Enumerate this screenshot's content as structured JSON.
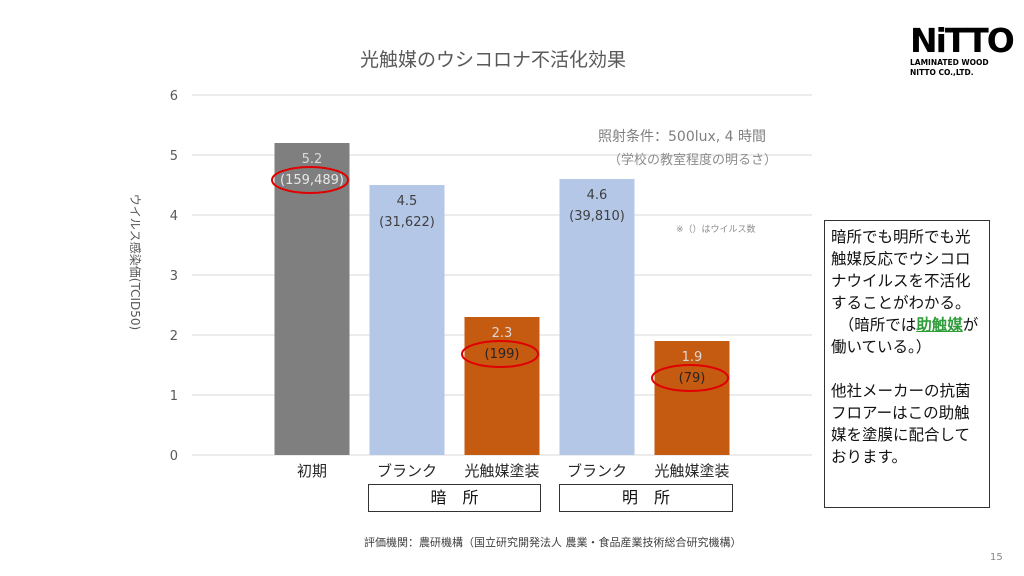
{
  "chart_data": {
    "type": "bar",
    "title": "光触媒のウシコロナ不活化効果",
    "ylabel": "ウイルス感染価(TCID50)",
    "xlabel": "",
    "ylim": [
      0,
      6
    ],
    "yticks": [
      0,
      1,
      2,
      3,
      4,
      5,
      6
    ],
    "grid": true,
    "categories": [
      "初期",
      "ブランク",
      "光触媒塗装",
      "ブランク",
      "光触媒塗装"
    ],
    "values": [
      5.2,
      4.5,
      2.3,
      4.6,
      1.9
    ],
    "value_labels": [
      "5.2",
      "4.5",
      "2.3",
      "4.6",
      "1.9"
    ],
    "sub_labels": [
      "(159,489)",
      "(31,622)",
      "(199)",
      "(39,810)",
      "(79)"
    ],
    "bar_colors": [
      "#7f7f7f",
      "#b4c7e7",
      "#c55a11",
      "#b4c7e7",
      "#c55a11"
    ],
    "circled": [
      0,
      2,
      4
    ],
    "groups": [
      {
        "label": "暗　所",
        "from": 1,
        "to": 2
      },
      {
        "label": "明　所",
        "from": 3,
        "to": 4
      }
    ],
    "annotations": {
      "condition_line1": "照射条件：500lux, 4 時間",
      "condition_line2": "（学校の教室程度の明るさ）",
      "virus_note": "※（）はウイルス数"
    }
  },
  "colors": {
    "axis_text": "#595959",
    "grid": "#d9d9d9",
    "circle": "#e00000",
    "highlight": "#2f9e3a"
  },
  "logo": {
    "mark": "NiTTO",
    "line1": "LAMINATED WOOD",
    "line2": "NITTO CO.,LTD."
  },
  "note": {
    "para1": "暗所でも明所でも光触媒反応でウシコロナウイルスを不活化することがわかる。",
    "para2_prefix": "　（暗所では",
    "para2_highlight": "助触媒",
    "para2_suffix": "が働いている。）",
    "para3": "他社メーカーの抗菌フロアーはこの助触媒を塗膜に配合しております。"
  },
  "footer": "評価機関：農研機構（国立研究開発法人 農業・食品産業技術総合研究機構）",
  "page_number": "15"
}
